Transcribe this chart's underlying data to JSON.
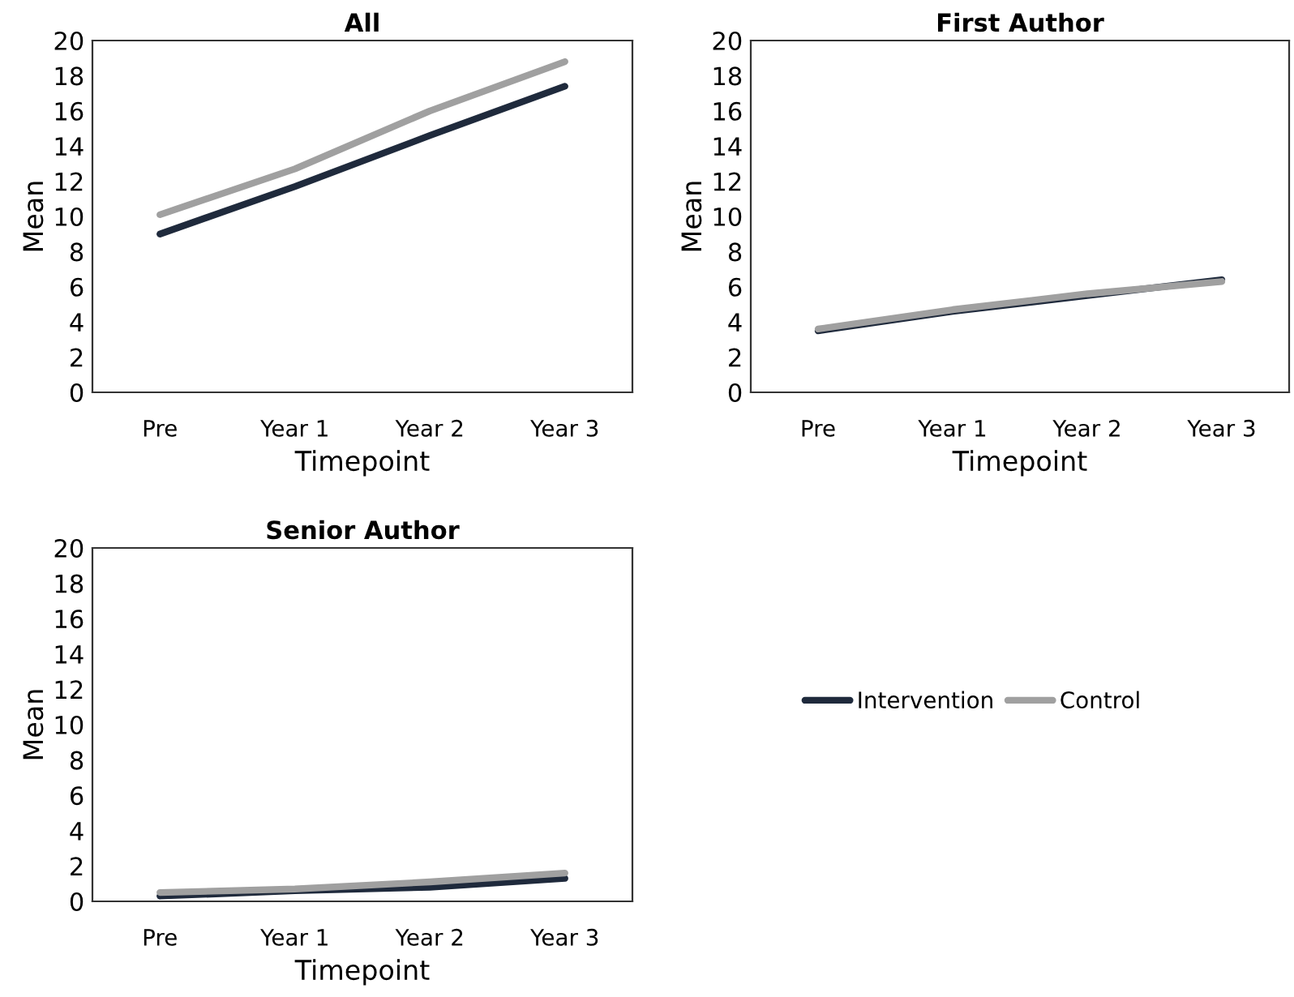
{
  "chart_data": [
    {
      "type": "line",
      "title": "All",
      "xlabel": "Timepoint",
      "ylabel": "Mean",
      "categories": [
        "Pre",
        "Year 1",
        "Year 2",
        "Year 3"
      ],
      "ylim": [
        0,
        20
      ],
      "yticks": [
        0,
        2,
        4,
        6,
        8,
        10,
        12,
        14,
        16,
        18,
        20
      ],
      "grid": false,
      "legend": "bottom right",
      "series": [
        {
          "name": "Intervention",
          "color": "#1f2a3c",
          "values": [
            9.0,
            11.7,
            14.6,
            17.4
          ]
        },
        {
          "name": "Control",
          "color": "#a0a0a0",
          "values": [
            10.1,
            12.7,
            16.0,
            18.8
          ]
        }
      ]
    },
    {
      "type": "line",
      "title": "First Author",
      "xlabel": "Timepoint",
      "ylabel": "Mean",
      "categories": [
        "Pre",
        "Year 1",
        "Year 2",
        "Year 3"
      ],
      "ylim": [
        0,
        20
      ],
      "yticks": [
        0,
        2,
        4,
        6,
        8,
        10,
        12,
        14,
        16,
        18,
        20
      ],
      "grid": false,
      "series": [
        {
          "color": "#1f2a3c",
          "values": [
            3.5,
            4.6,
            5.5,
            6.4
          ]
        },
        {
          "color": "#a0a0a0",
          "values": [
            3.6,
            4.7,
            5.6,
            6.3
          ]
        }
      ]
    },
    {
      "type": "line",
      "title": "Senior Author",
      "xlabel": "Timepoint",
      "ylabel": "Mean",
      "categories": [
        "Pre",
        "Year 1",
        "Year 2",
        "Year 3"
      ],
      "ylim": [
        0,
        20
      ],
      "yticks": [
        0,
        2,
        4,
        6,
        8,
        10,
        12,
        14,
        16,
        18,
        20
      ],
      "grid": false,
      "series": [
        {
          "color": "#1f2a3c",
          "values": [
            0.3,
            0.6,
            0.8,
            1.3
          ]
        },
        {
          "color": "#a0a0a0",
          "values": [
            0.5,
            0.7,
            1.1,
            1.6
          ]
        }
      ]
    }
  ]
}
